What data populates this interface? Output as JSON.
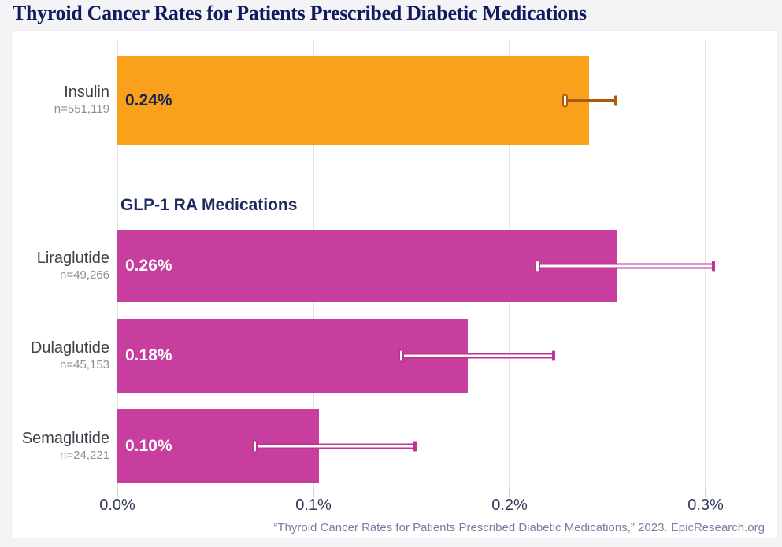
{
  "title": "Thyroid Cancer Rates for Patients Prescribed Diabetic Medications",
  "footer": "“Thyroid Cancer Rates for Patients Prescribed Diabetic Medications,” 2023. EpicResearch.org",
  "group_header": "GLP-1 RA Medications",
  "colors": {
    "insulin_bar": "#f9a11b",
    "glp_bar": "#c73e9e",
    "insulin_error": "#ac5a0a",
    "glp_error": "#be3391",
    "title_navy": "#111a5e",
    "background": "#f4f4f7",
    "card": "#ffffff",
    "gridline": "#e5e5e9"
  },
  "chart_data": {
    "type": "bar",
    "orientation": "horizontal",
    "title": "Thyroid Cancer Rates for Patients Prescribed Diabetic Medications",
    "xlabel": "",
    "ylabel": "",
    "x_axis": {
      "unit": "%",
      "range": [
        0,
        0.326
      ],
      "grid": true,
      "ticks": [
        {
          "label": "0.0%",
          "value": 0.0
        },
        {
          "label": "0.1%",
          "value": 0.1
        },
        {
          "label": "0.2%",
          "value": 0.2
        },
        {
          "label": "0.3%",
          "value": 0.3
        }
      ]
    },
    "series": [
      {
        "name": "Insulin",
        "n_label": "n=551,119",
        "group": "Insulin",
        "value_label": "0.24%",
        "value_pct": 0.2405,
        "err_lo_pct": 0.228,
        "err_hi_pct": 0.254,
        "bar_color": "#f9a11b",
        "error_color": "#ac5a0a",
        "value_label_color": "#1b2153"
      },
      {
        "name": "Liraglutide",
        "n_label": "n=49,266",
        "group": "GLP-1 RA Medications",
        "value_label": "0.26%",
        "value_pct": 0.2551,
        "err_lo_pct": 0.214,
        "err_hi_pct": 0.304,
        "bar_color": "#c73e9e",
        "error_color": "#be3391",
        "value_label_color": "#ffffff"
      },
      {
        "name": "Dulaglutide",
        "n_label": "n=45,153",
        "group": "GLP-1 RA Medications",
        "value_label": "0.18%",
        "value_pct": 0.1788,
        "err_lo_pct": 0.1445,
        "err_hi_pct": 0.2225,
        "bar_color": "#c73e9e",
        "error_color": "#be3391",
        "value_label_color": "#ffffff"
      },
      {
        "name": "Semaglutide",
        "n_label": "n=24,221",
        "group": "GLP-1 RA Medications",
        "value_label": "0.10%",
        "value_pct": 0.1028,
        "err_lo_pct": 0.07,
        "err_hi_pct": 0.152,
        "bar_color": "#c73e9e",
        "error_color": "#be3391",
        "value_label_color": "#ffffff"
      }
    ]
  }
}
